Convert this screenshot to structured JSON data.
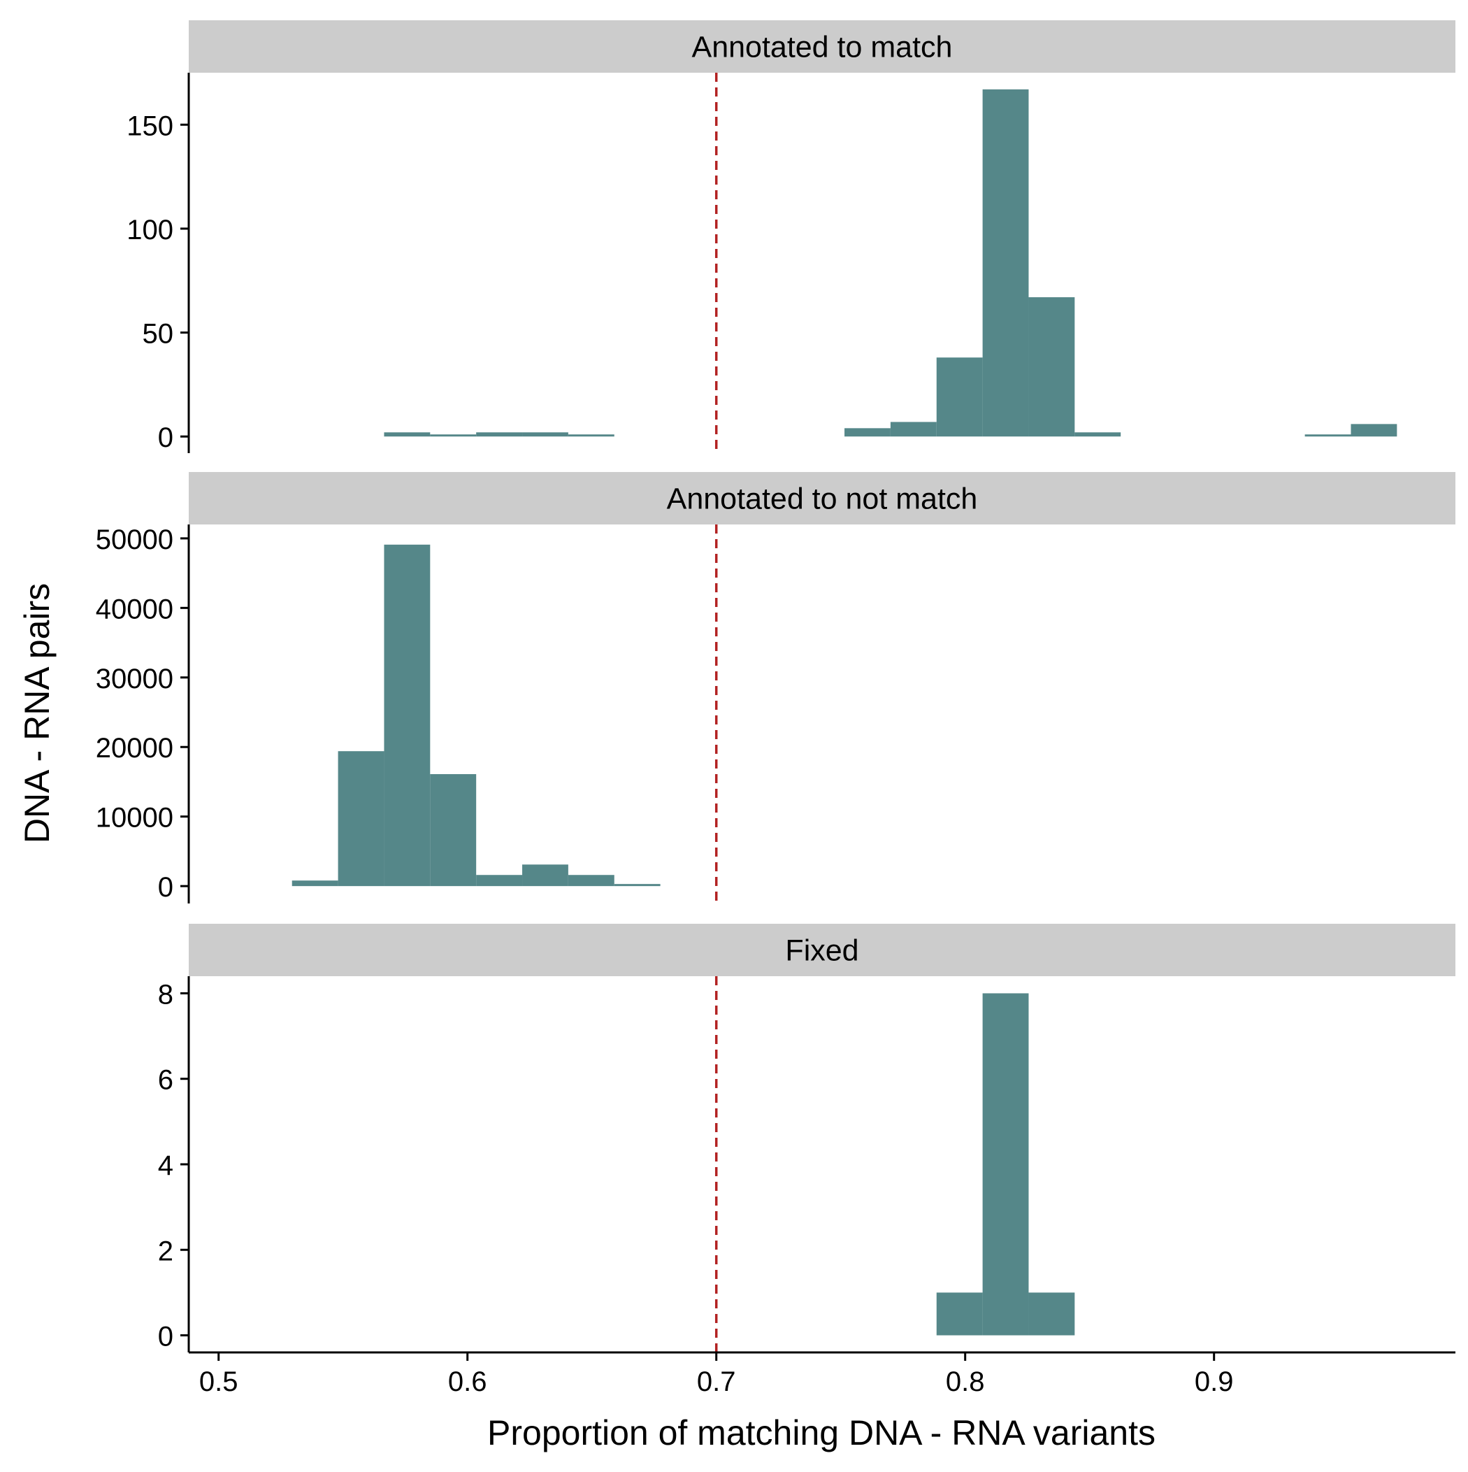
{
  "chart_data": {
    "type": "bar",
    "chart_subtype": "faceted histogram",
    "xlabel": "Proportion of matching DNA - RNA variants",
    "ylabel": "DNA - RNA pairs",
    "xlim": [
      0.488,
      0.997
    ],
    "x_ticks": [
      0.5,
      0.6,
      0.7,
      0.8,
      0.9
    ],
    "x_tick_labels": [
      "0.5",
      "0.6",
      "0.7",
      "0.8",
      "0.9"
    ],
    "bin_width": 0.0185,
    "reference_line": {
      "x": 0.7,
      "style": "dashed",
      "color": "#b22222"
    },
    "bar_color": "#558789",
    "strip_color": "#cccccc",
    "grid": false,
    "facets": [
      {
        "label": "Annotated to match",
        "ylim": [
          -8,
          175
        ],
        "y_ticks": [
          0,
          50,
          100,
          150
        ],
        "y_tick_labels": [
          "0",
          "50",
          "100",
          "150"
        ],
        "bins": [
          {
            "x0": 0.5665,
            "x1": 0.585,
            "count": 2
          },
          {
            "x0": 0.585,
            "x1": 0.6035,
            "count": 1
          },
          {
            "x0": 0.6035,
            "x1": 0.622,
            "count": 2
          },
          {
            "x0": 0.622,
            "x1": 0.6405,
            "count": 2
          },
          {
            "x0": 0.6405,
            "x1": 0.659,
            "count": 1
          },
          {
            "x0": 0.7515,
            "x1": 0.77,
            "count": 4
          },
          {
            "x0": 0.77,
            "x1": 0.7885,
            "count": 7
          },
          {
            "x0": 0.7885,
            "x1": 0.807,
            "count": 38
          },
          {
            "x0": 0.807,
            "x1": 0.8255,
            "count": 167
          },
          {
            "x0": 0.8255,
            "x1": 0.844,
            "count": 67
          },
          {
            "x0": 0.844,
            "x1": 0.8625,
            "count": 2
          },
          {
            "x0": 0.9365,
            "x1": 0.955,
            "count": 1
          },
          {
            "x0": 0.955,
            "x1": 0.9735,
            "count": 6
          }
        ]
      },
      {
        "label": "Annotated to not match",
        "ylim": [
          -2500,
          52000
        ],
        "y_ticks": [
          0,
          10000,
          20000,
          30000,
          40000,
          50000
        ],
        "y_tick_labels": [
          "0",
          "10000",
          "20000",
          "30000",
          "40000",
          "50000"
        ],
        "bins": [
          {
            "x0": 0.5295,
            "x1": 0.548,
            "count": 800
          },
          {
            "x0": 0.548,
            "x1": 0.5665,
            "count": 19400
          },
          {
            "x0": 0.5665,
            "x1": 0.585,
            "count": 49100
          },
          {
            "x0": 0.585,
            "x1": 0.6035,
            "count": 16100
          },
          {
            "x0": 0.6035,
            "x1": 0.622,
            "count": 1600
          },
          {
            "x0": 0.622,
            "x1": 0.6405,
            "count": 3100
          },
          {
            "x0": 0.6405,
            "x1": 0.659,
            "count": 1600
          },
          {
            "x0": 0.659,
            "x1": 0.6775,
            "count": 300
          }
        ]
      },
      {
        "label": "Fixed",
        "ylim": [
          -0.4,
          8.4
        ],
        "y_ticks": [
          0,
          2,
          4,
          6,
          8
        ],
        "y_tick_labels": [
          "0",
          "2",
          "4",
          "6",
          "8"
        ],
        "bins": [
          {
            "x0": 0.7885,
            "x1": 0.807,
            "count": 1
          },
          {
            "x0": 0.807,
            "x1": 0.8255,
            "count": 8
          },
          {
            "x0": 0.8255,
            "x1": 0.844,
            "count": 1
          }
        ]
      }
    ]
  }
}
